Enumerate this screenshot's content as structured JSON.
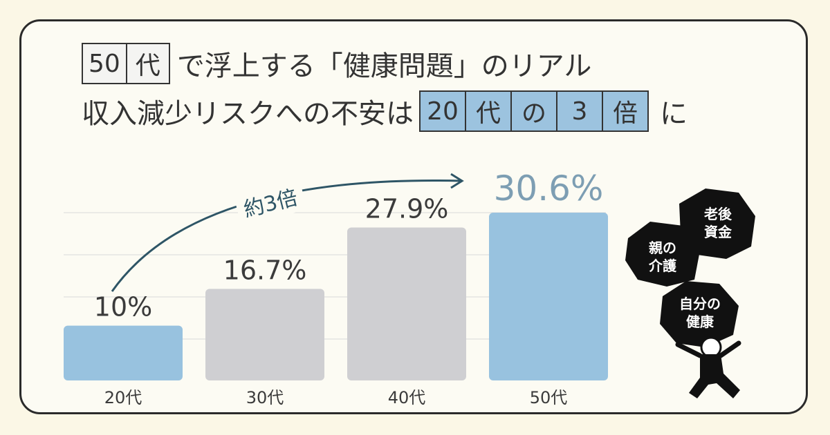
{
  "title": {
    "line1_boxes": [
      "50",
      "代"
    ],
    "line1_text": "で浮上する「健康問題」のリアル",
    "line2_text": "収入減少リスクへの不安は",
    "line2_boxes": [
      "20",
      "代",
      "の",
      "3",
      "倍"
    ],
    "line2_after": "に"
  },
  "annotation": {
    "label": "約3倍"
  },
  "illustration": {
    "bubbles": [
      "老後\n資金",
      "親の\n介護",
      "自分の\n健康"
    ]
  },
  "chart_data": {
    "type": "bar",
    "categories": [
      "20代",
      "30代",
      "40代",
      "50代"
    ],
    "values": [
      10,
      16.7,
      27.9,
      30.6
    ],
    "value_labels": [
      "10%",
      "16.7%",
      "27.9%",
      "30.6%"
    ],
    "ylim": [
      0,
      30.6
    ],
    "grid": true,
    "colors": {
      "highlight": "#98c2df",
      "neutral": "#cfcfd2",
      "highlight_label": "#7d9eb3",
      "label": "#3b3b3b",
      "arrow": "#2e5566"
    },
    "highlighted": [
      "20代",
      "50代"
    ]
  }
}
